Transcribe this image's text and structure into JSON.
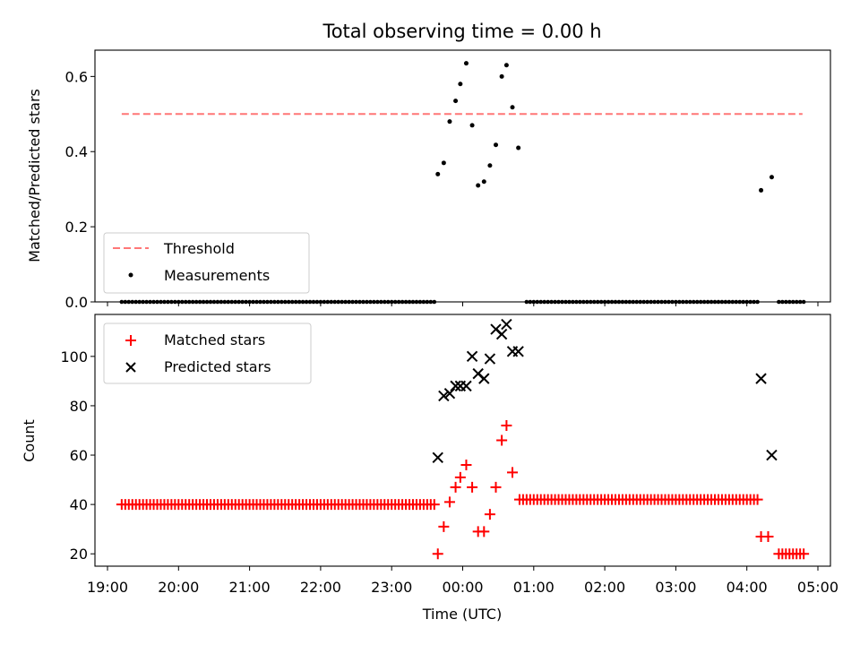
{
  "chart_data": [
    {
      "type": "scatter",
      "title": "Total observing time = 0.00 h",
      "xlabel": "",
      "ylabel": "Matched/Predicted stars",
      "ylim": [
        0,
        0.67
      ],
      "yticks": [
        "0.0",
        "0.2",
        "0.4",
        "0.6"
      ],
      "legend": {
        "placement": "lower-left",
        "entries": [
          "Threshold",
          "Measurements"
        ]
      },
      "colors": {
        "threshold": "#ff7777",
        "measurements": "#000000"
      },
      "threshold": {
        "name": "Threshold",
        "y": 0.5,
        "x_start": "19:12",
        "x_end": "04:47"
      },
      "series": [
        {
          "name": "Measurements",
          "zero_runs": [
            {
              "from": "19:12",
              "to": "23:36",
              "step_min": 3
            },
            {
              "from": "00:54",
              "to": "04:09",
              "step_min": 3
            },
            {
              "from": "04:27",
              "to": "04:48",
              "step_min": 3
            }
          ],
          "points": [
            {
              "x": "23:39",
              "y": 0.34
            },
            {
              "x": "23:44",
              "y": 0.37
            },
            {
              "x": "23:49",
              "y": 0.48
            },
            {
              "x": "23:54",
              "y": 0.535
            },
            {
              "x": "23:58",
              "y": 0.58
            },
            {
              "x": "00:03",
              "y": 0.635
            },
            {
              "x": "00:08",
              "y": 0.47
            },
            {
              "x": "00:13",
              "y": 0.31
            },
            {
              "x": "00:18",
              "y": 0.32
            },
            {
              "x": "00:23",
              "y": 0.363
            },
            {
              "x": "00:28",
              "y": 0.418
            },
            {
              "x": "00:33",
              "y": 0.6
            },
            {
              "x": "00:37",
              "y": 0.63
            },
            {
              "x": "00:42",
              "y": 0.518
            },
            {
              "x": "00:47",
              "y": 0.41
            },
            {
              "x": "04:12",
              "y": 0.297
            },
            {
              "x": "04:21",
              "y": 0.332
            }
          ]
        }
      ]
    },
    {
      "type": "scatter",
      "xlabel": "Time (UTC)",
      "ylabel": "Count",
      "ylim": [
        15,
        117
      ],
      "yticks": [
        "20",
        "40",
        "60",
        "80",
        "100"
      ],
      "xticks": [
        "19:00",
        "20:00",
        "21:00",
        "22:00",
        "23:00",
        "00:00",
        "01:00",
        "02:00",
        "03:00",
        "04:00",
        "05:00"
      ],
      "legend": {
        "placement": "upper-left",
        "entries": [
          "Matched stars",
          "Predicted stars"
        ]
      },
      "colors": {
        "matched": "#ff0000",
        "predicted": "#000000"
      },
      "series": [
        {
          "name": "Matched stars",
          "runs": [
            {
              "from": "19:12",
              "to": "23:36",
              "step_min": 3,
              "y": 40
            },
            {
              "from": "00:48",
              "to": "04:09",
              "step_min": 3,
              "y": 42
            },
            {
              "from": "04:27",
              "to": "04:48",
              "step_min": 3,
              "y": 20
            }
          ],
          "points": [
            {
              "x": "23:39",
              "y": 20
            },
            {
              "x": "23:44",
              "y": 31
            },
            {
              "x": "23:49",
              "y": 41
            },
            {
              "x": "23:54",
              "y": 47
            },
            {
              "x": "23:58",
              "y": 51
            },
            {
              "x": "00:03",
              "y": 56
            },
            {
              "x": "00:08",
              "y": 47
            },
            {
              "x": "00:13",
              "y": 29
            },
            {
              "x": "00:18",
              "y": 29
            },
            {
              "x": "00:23",
              "y": 36
            },
            {
              "x": "00:28",
              "y": 47
            },
            {
              "x": "00:33",
              "y": 66
            },
            {
              "x": "00:37",
              "y": 72
            },
            {
              "x": "00:42",
              "y": 53
            },
            {
              "x": "04:12",
              "y": 27
            },
            {
              "x": "04:18",
              "y": 27
            }
          ]
        },
        {
          "name": "Predicted stars",
          "points": [
            {
              "x": "23:39",
              "y": 59
            },
            {
              "x": "23:44",
              "y": 84
            },
            {
              "x": "23:49",
              "y": 85
            },
            {
              "x": "23:54",
              "y": 88
            },
            {
              "x": "23:58",
              "y": 88
            },
            {
              "x": "00:03",
              "y": 88
            },
            {
              "x": "00:08",
              "y": 100
            },
            {
              "x": "00:13",
              "y": 93
            },
            {
              "x": "00:18",
              "y": 91
            },
            {
              "x": "00:23",
              "y": 99
            },
            {
              "x": "00:28",
              "y": 111
            },
            {
              "x": "00:33",
              "y": 109
            },
            {
              "x": "00:37",
              "y": 113
            },
            {
              "x": "00:42",
              "y": 102
            },
            {
              "x": "00:47",
              "y": 102
            },
            {
              "x": "04:12",
              "y": 91
            },
            {
              "x": "04:21",
              "y": 60
            }
          ]
        }
      ]
    }
  ]
}
